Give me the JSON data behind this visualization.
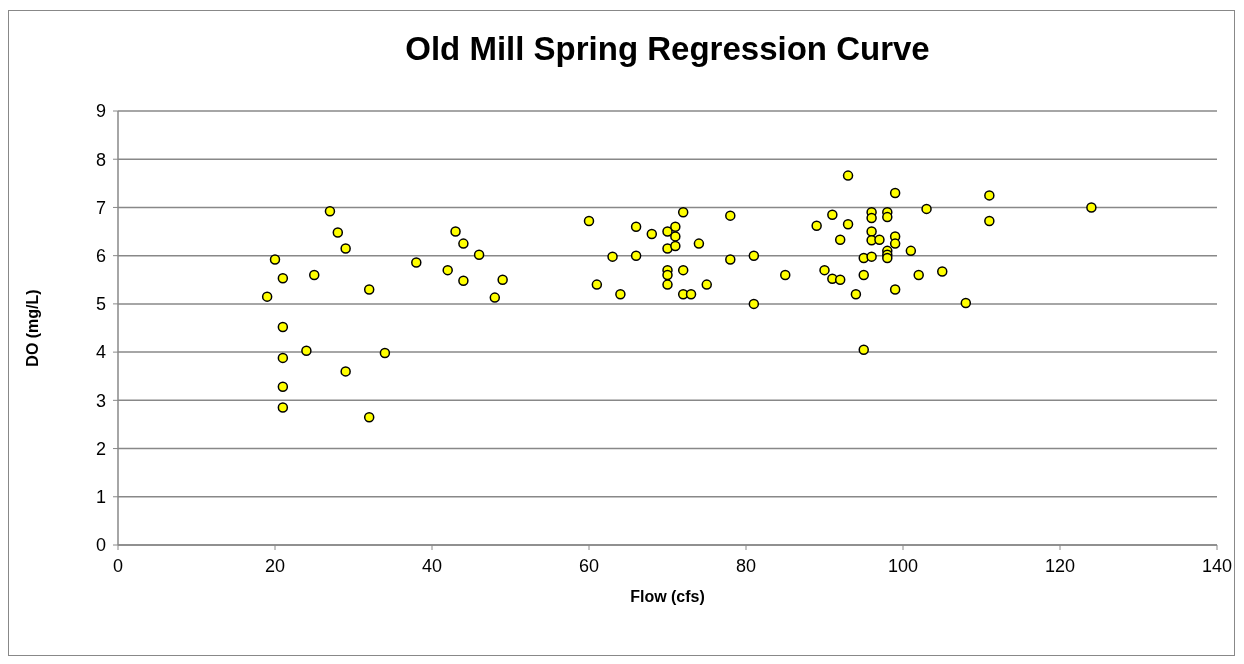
{
  "chart_data": {
    "type": "scatter",
    "title": "Old  Mill Spring Regression Curve",
    "xlabel": "Flow (cfs)",
    "ylabel": "DO (mg/L)",
    "xlim": [
      0,
      140
    ],
    "xticks": [
      0,
      20,
      40,
      60,
      80,
      100,
      120,
      140
    ],
    "ylim": [
      0,
      9
    ],
    "yticks": [
      0,
      1,
      2,
      3,
      4,
      5,
      6,
      7,
      8,
      9
    ],
    "grid": "y",
    "marker": "circle",
    "series": [
      {
        "color": "#ffff00",
        "x": [
          19,
          20,
          21,
          21,
          21,
          21,
          21,
          24,
          25,
          27,
          28,
          29,
          29,
          32,
          32,
          34,
          38,
          42,
          43,
          44,
          44,
          46,
          48,
          49,
          60,
          61,
          63,
          64,
          66,
          66,
          68,
          70,
          70,
          70,
          70,
          70,
          71,
          71,
          71,
          72,
          72,
          72,
          73,
          74,
          75,
          78,
          78,
          81,
          81,
          85,
          89,
          90,
          91,
          91,
          92,
          92,
          93,
          93,
          94,
          95,
          95,
          95,
          96,
          96,
          96,
          96,
          96,
          97,
          98,
          98,
          98,
          98,
          98,
          99,
          99,
          99,
          99,
          101,
          102,
          103,
          105,
          108,
          111,
          111,
          124
        ],
        "values": [
          5.15,
          5.92,
          5.53,
          4.52,
          3.88,
          3.28,
          2.85,
          4.03,
          5.6,
          6.92,
          6.48,
          6.15,
          3.6,
          5.3,
          2.65,
          3.98,
          5.86,
          5.7,
          6.5,
          6.25,
          5.48,
          6.02,
          5.13,
          5.5,
          6.72,
          5.4,
          5.98,
          5.2,
          6.6,
          6.0,
          6.45,
          6.5,
          6.15,
          5.7,
          5.6,
          5.4,
          6.6,
          6.4,
          6.2,
          6.9,
          5.7,
          5.2,
          5.2,
          6.25,
          5.4,
          6.83,
          5.92,
          6.0,
          5.0,
          5.6,
          6.62,
          5.7,
          6.85,
          5.52,
          6.33,
          5.5,
          7.66,
          6.65,
          5.2,
          5.95,
          5.6,
          4.05,
          6.9,
          6.78,
          6.5,
          6.32,
          5.98,
          6.33,
          6.9,
          6.8,
          6.1,
          6.02,
          5.95,
          7.3,
          6.4,
          6.25,
          5.3,
          6.1,
          5.6,
          6.97,
          5.67,
          5.02,
          7.25,
          6.72,
          7.0
        ]
      }
    ]
  }
}
